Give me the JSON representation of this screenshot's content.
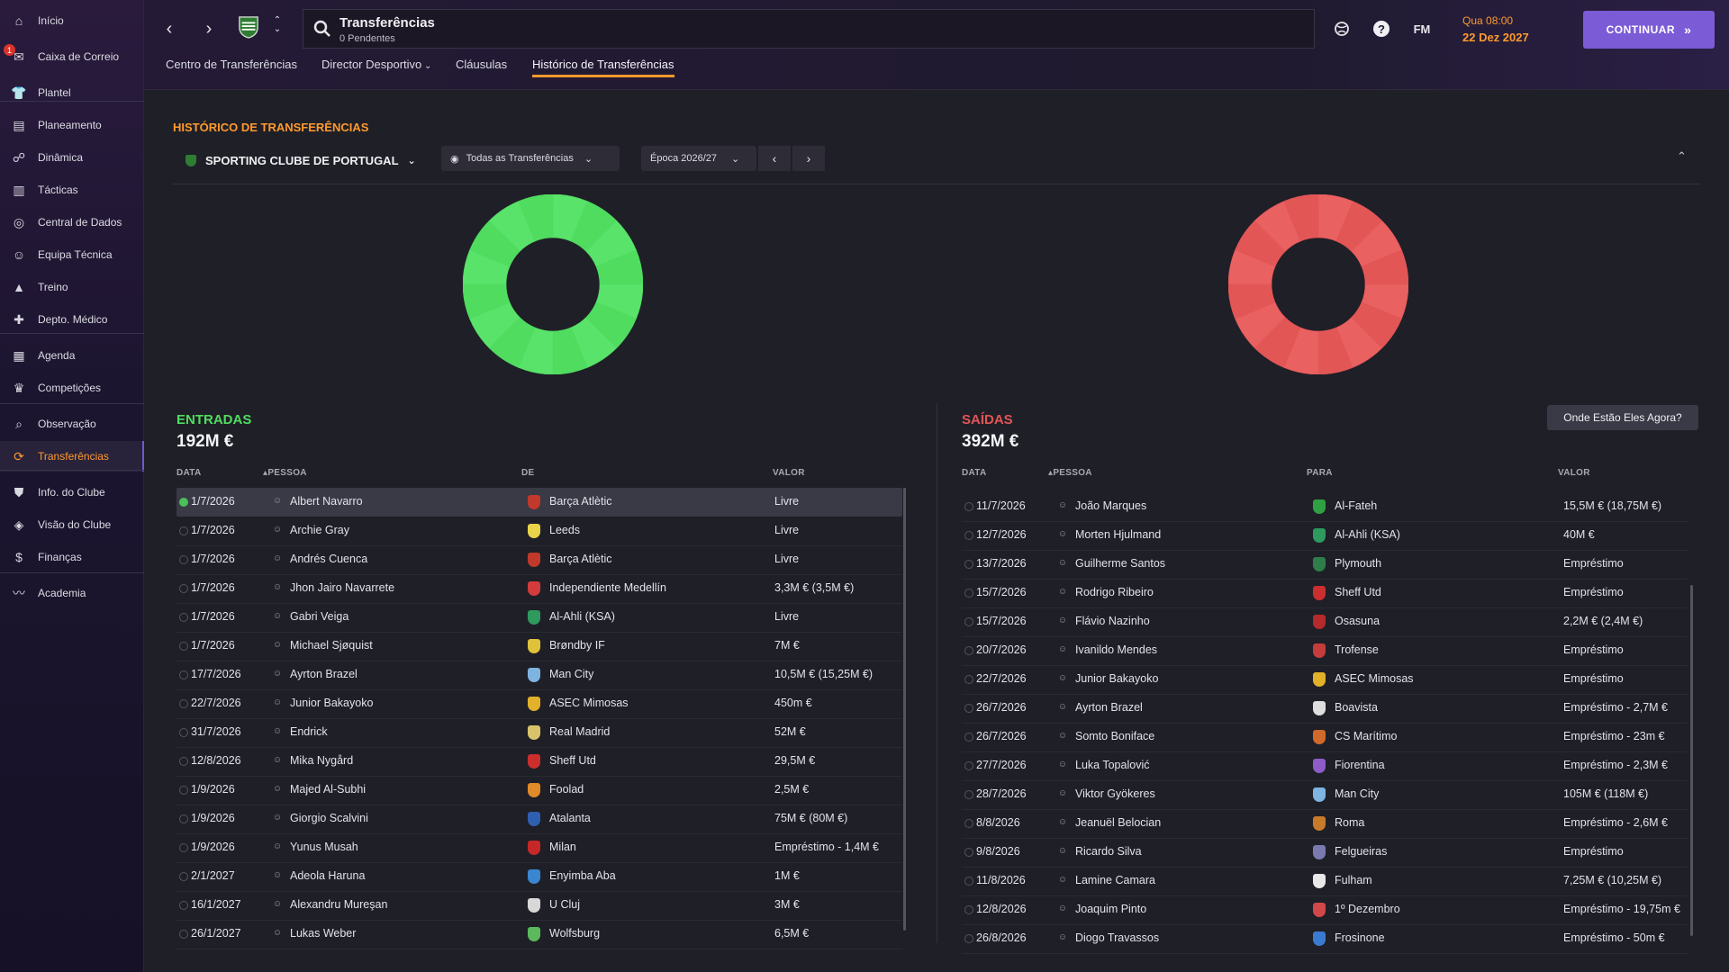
{
  "sidebar": {
    "items": [
      {
        "label": "Início",
        "icon": "home-icon",
        "glyph": "⌂"
      },
      {
        "label": "Caixa de Correio",
        "icon": "mail-icon",
        "glyph": "✉",
        "badge": "1"
      },
      {
        "label": "Plantel",
        "icon": "shirt-icon",
        "glyph": "👕"
      },
      {
        "label": "Planeamento",
        "icon": "clipboard-icon",
        "glyph": "▤"
      },
      {
        "label": "Dinâmica",
        "icon": "people-icon",
        "glyph": "☍"
      },
      {
        "label": "Tácticas",
        "icon": "tactics-board-icon",
        "glyph": "▥"
      },
      {
        "label": "Central de Dados",
        "icon": "data-hub-icon",
        "glyph": "◎"
      },
      {
        "label": "Equipa Técnica",
        "icon": "staff-icon",
        "glyph": "☺"
      },
      {
        "label": "Treino",
        "icon": "cone-icon",
        "glyph": "▲"
      },
      {
        "label": "Depto. Médico",
        "icon": "medical-icon",
        "glyph": "✚"
      },
      {
        "label": "Agenda",
        "icon": "calendar-icon",
        "glyph": "▦"
      },
      {
        "label": "Competições",
        "icon": "trophy-icon",
        "glyph": "♛"
      },
      {
        "label": "Observação",
        "icon": "scouting-icon",
        "glyph": "⌕"
      },
      {
        "label": "Transferências",
        "icon": "transfers-icon",
        "glyph": "⟳",
        "active": true
      },
      {
        "label": "Info. do Clube",
        "icon": "shield-icon",
        "glyph": "⛊"
      },
      {
        "label": "Visão do Clube",
        "icon": "vision-icon",
        "glyph": "◈"
      },
      {
        "label": "Finanças",
        "icon": "finances-icon",
        "glyph": "$"
      },
      {
        "label": "Academia",
        "icon": "academy-icon",
        "glyph": "〰"
      }
    ]
  },
  "header": {
    "search_title": "Transferências",
    "search_sub": "0 Pendentes",
    "fm_label": "FM",
    "time": "Qua 08:00",
    "date": "22 Dez 2027",
    "continue_label": "CONTINUAR",
    "tabs": [
      {
        "label": "Centro de Transferências"
      },
      {
        "label": "Director Desportivo",
        "has_dropdown": true
      },
      {
        "label": "Cláusulas"
      },
      {
        "label": "Histórico de Transferências",
        "active": true
      }
    ]
  },
  "main": {
    "section_title": "HISTÓRICO DE TRANSFERÊNCIAS",
    "club": "SPORTING CLUBE DE PORTUGAL",
    "filter": "Todas as Transferências",
    "season": "Época 2026/27",
    "where_label": "Onde Estão Eles Agora?"
  },
  "colors": {
    "accent": "#ff9a2e",
    "incoming": "#4fdc5f",
    "outgoing": "#e25656",
    "button": "#7b5cd6"
  },
  "incoming": {
    "title": "ENTRADAS",
    "total": "192M €",
    "headers": {
      "date": "DATA",
      "person": "PESSOA",
      "club": "DE",
      "value": "VALOR"
    },
    "rows": [
      {
        "date": "1/7/2026",
        "person": "Albert Navarro",
        "club": "Barça Atlètic",
        "value": "Livre",
        "crest": "#c0392b"
      },
      {
        "date": "1/7/2026",
        "person": "Archie Gray",
        "club": "Leeds",
        "value": "Livre",
        "crest": "#e8d34a"
      },
      {
        "date": "1/7/2026",
        "person": "Andrés Cuenca",
        "club": "Barça Atlètic",
        "value": "Livre",
        "crest": "#c0392b"
      },
      {
        "date": "1/7/2026",
        "person": "Jhon Jairo Navarrete",
        "club": "Independiente Medellín",
        "value": "3,3M € (3,5M €)",
        "crest": "#d23c3c"
      },
      {
        "date": "1/7/2026",
        "person": "Gabri Veiga",
        "club": "Al-Ahli (KSA)",
        "value": "Livre",
        "crest": "#2e9a5e"
      },
      {
        "date": "1/7/2026",
        "person": "Michael Sjøquist",
        "club": "Brøndby IF",
        "value": "7M €",
        "crest": "#e0c23a"
      },
      {
        "date": "17/7/2026",
        "person": "Ayrton Brazel",
        "club": "Man City",
        "value": "10,5M € (15,25M €)",
        "crest": "#7fb3e0"
      },
      {
        "date": "22/7/2026",
        "person": "Junior Bakayoko",
        "club": "ASEC Mimosas",
        "value": "450m €",
        "crest": "#e2b12a"
      },
      {
        "date": "31/7/2026",
        "person": "Endrick",
        "club": "Real Madrid",
        "value": "52M €",
        "crest": "#d9c36a"
      },
      {
        "date": "12/8/2026",
        "person": "Mika Nygård",
        "club": "Sheff Utd",
        "value": "29,5M €",
        "crest": "#cc2e2e"
      },
      {
        "date": "1/9/2026",
        "person": "Majed Al-Subhi",
        "club": "Foolad",
        "value": "2,5M €",
        "crest": "#e08a2a"
      },
      {
        "date": "1/9/2026",
        "person": "Giorgio Scalvini",
        "club": "Atalanta",
        "value": "75M € (80M €)",
        "crest": "#2f5fb0"
      },
      {
        "date": "1/9/2026",
        "person": "Yunus Musah",
        "club": "Milan",
        "value": "Empréstimo - 1,4M €",
        "crest": "#c62828"
      },
      {
        "date": "2/1/2027",
        "person": "Adeola Haruna",
        "club": "Enyimba Aba",
        "value": "1M €",
        "crest": "#3a86d0"
      },
      {
        "date": "16/1/2027",
        "person": "Alexandru Mureşan",
        "club": "U Cluj",
        "value": "3M €",
        "crest": "#d8d8d8"
      },
      {
        "date": "26/1/2027",
        "person": "Lukas Weber",
        "club": "Wolfsburg",
        "value": "6,5M €",
        "crest": "#5cb85c"
      }
    ]
  },
  "outgoing": {
    "title": "SAÍDAS",
    "total": "392M €",
    "headers": {
      "date": "DATA",
      "person": "PESSOA",
      "club": "PARA",
      "value": "VALOR"
    },
    "rows": [
      {
        "date": "11/7/2026",
        "person": "João Marques",
        "club": "Al-Fateh",
        "value": "15,5M € (18,75M €)",
        "crest": "#2ea043"
      },
      {
        "date": "12/7/2026",
        "person": "Morten Hjulmand",
        "club": "Al-Ahli (KSA)",
        "value": "40M €",
        "crest": "#2e9a5e"
      },
      {
        "date": "13/7/2026",
        "person": "Guilherme Santos",
        "club": "Plymouth",
        "value": "Empréstimo",
        "crest": "#2e7d4a"
      },
      {
        "date": "15/7/2026",
        "person": "Rodrigo Ribeiro",
        "club": "Sheff Utd",
        "value": "Empréstimo",
        "crest": "#cc2e2e"
      },
      {
        "date": "15/7/2026",
        "person": "Flávio Nazinho",
        "club": "Osasuna",
        "value": "2,2M € (2,4M €)",
        "crest": "#b52a2a"
      },
      {
        "date": "20/7/2026",
        "person": "Ivanildo Mendes",
        "club": "Trofense",
        "value": "Empréstimo",
        "crest": "#c43c3c"
      },
      {
        "date": "22/7/2026",
        "person": "Junior Bakayoko",
        "club": "ASEC Mimosas",
        "value": "Empréstimo",
        "crest": "#e2b12a"
      },
      {
        "date": "26/7/2026",
        "person": "Ayrton Brazel",
        "club": "Boavista",
        "value": "Empréstimo - 2,7M €",
        "crest": "#dedede"
      },
      {
        "date": "26/7/2026",
        "person": "Somto Boniface",
        "club": "CS Marítimo",
        "value": "Empréstimo - 23m €",
        "crest": "#d06a2a"
      },
      {
        "date": "27/7/2026",
        "person": "Luka Topalović",
        "club": "Fiorentina",
        "value": "Empréstimo - 2,3M €",
        "crest": "#8e5cc8"
      },
      {
        "date": "28/7/2026",
        "person": "Viktor Gyökeres",
        "club": "Man City",
        "value": "105M € (118M €)",
        "crest": "#7fb3e0"
      },
      {
        "date": "8/8/2026",
        "person": "Jeanuël Belocian",
        "club": "Roma",
        "value": "Empréstimo - 2,6M €",
        "crest": "#c87a2a"
      },
      {
        "date": "9/8/2026",
        "person": "Ricardo Silva",
        "club": "Felgueiras",
        "value": "Empréstimo",
        "crest": "#7a7ab0"
      },
      {
        "date": "11/8/2026",
        "person": "Lamine Camara",
        "club": "Fulham",
        "value": "7,25M € (10,25M €)",
        "crest": "#e8e8e8"
      },
      {
        "date": "12/8/2026",
        "person": "Joaquim Pinto",
        "club": "1º Dezembro",
        "value": "Empréstimo - 19,75m €",
        "crest": "#d04848"
      },
      {
        "date": "26/8/2026",
        "person": "Diogo Travassos",
        "club": "Frosinone",
        "value": "Empréstimo - 50m €",
        "crest": "#3a7ad0"
      }
    ]
  }
}
